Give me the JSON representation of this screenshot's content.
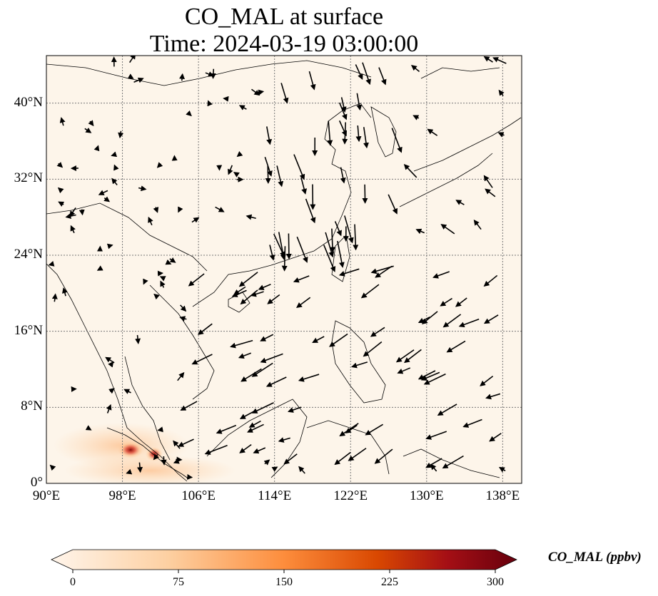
{
  "title_line1": "CO_MAL at surface",
  "title_line2": "Time: 2024-03-19 03:00:00",
  "colorbar": {
    "label": "CO_MAL (ppbv)",
    "ticks": [
      "0",
      "75",
      "150",
      "225",
      "300"
    ],
    "min": 0,
    "max": 300,
    "extend": "both",
    "colormap": [
      "#fff5eb",
      "#fdd0a2",
      "#fd8d3c",
      "#d94801",
      "#a50f15",
      "#67000d"
    ]
  },
  "map": {
    "lon_range": [
      90,
      140
    ],
    "lat_range": [
      0,
      45
    ],
    "x_ticks": [
      {
        "lon": 90,
        "label": "90°E"
      },
      {
        "lon": 98,
        "label": "98°E"
      },
      {
        "lon": 106,
        "label": "106°E"
      },
      {
        "lon": 114,
        "label": "114°E"
      },
      {
        "lon": 122,
        "label": "122°E"
      },
      {
        "lon": 130,
        "label": "130°E"
      },
      {
        "lon": 138,
        "label": "138°E"
      }
    ],
    "y_ticks": [
      {
        "lat": 0,
        "label": "0°"
      },
      {
        "lat": 8,
        "label": "8°N"
      },
      {
        "lat": 16,
        "label": "16°N"
      },
      {
        "lat": 24,
        "label": "24°N"
      },
      {
        "lat": 32,
        "label": "32°N"
      },
      {
        "lat": 40,
        "label": "40°N"
      }
    ],
    "gridlines": true,
    "background_color": "#fdf5ea",
    "hotspots": [
      {
        "lon": 99.0,
        "lat": 3.5,
        "value": 300
      },
      {
        "lon": 101.2,
        "lat": 3.0,
        "value": 230
      },
      {
        "lon": 97.5,
        "lat": 4.5,
        "value": 90
      },
      {
        "lon": 100.0,
        "lat": 2.0,
        "value": 70
      }
    ]
  }
}
